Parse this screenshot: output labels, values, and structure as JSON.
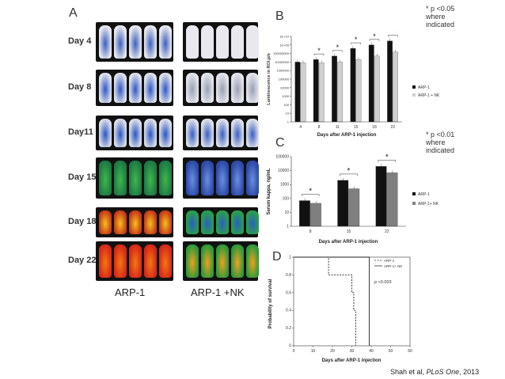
{
  "panel_a": {
    "letter": "A",
    "days": [
      "Day 4",
      "Day 8",
      "Day11",
      "Day 15",
      "Day 18",
      "Day 22"
    ],
    "group_left": "ARP-1",
    "group_right": "ARP-1 +NK"
  },
  "panel_b": {
    "letter": "B",
    "note": "* p <0.05\nwhere\nindicated",
    "legend": [
      "ARP-1",
      "ARP-1 + NK"
    ],
    "chart_data": {
      "type": "bar",
      "title": "",
      "xlabel": "Days after ARP-1 injection",
      "ylabel": "Luminescence in ROI,p/s",
      "yscale": "log",
      "ylim": [
        1,
        10000000000
      ],
      "yticks": [
        "1",
        "10",
        "100",
        "1000",
        "10000",
        "100000",
        "1000000",
        "10000000",
        "100000000",
        "1E+09",
        "1E+10"
      ],
      "categories": [
        "4",
        "8",
        "11",
        "15",
        "18",
        "22"
      ],
      "series": [
        {
          "name": "ARP-1",
          "color": "#111111",
          "values": [
            10000000,
            20000000,
            50000000,
            400000000,
            1000000000,
            3000000000
          ]
        },
        {
          "name": "ARP-1 + NK",
          "color": "#cfcfcf",
          "values": [
            8000000,
            8000000,
            10000000,
            20000000,
            50000000,
            150000000
          ]
        }
      ],
      "significant": [
        "8",
        "11",
        "15",
        "18",
        "22"
      ]
    }
  },
  "panel_c": {
    "letter": "C",
    "note": "* p <0.01\nwhere\nindicated",
    "legend": [
      "ARP-1",
      "ARP-1+ NK"
    ],
    "chart_data": {
      "type": "bar",
      "title": "",
      "xlabel": "Days after ARP-1 injection",
      "ylabel": "Serum kappa, ng/mL",
      "yscale": "log",
      "ylim": [
        1,
        100000
      ],
      "yticks": [
        "1",
        "10",
        "100",
        "1000",
        "10000",
        "100000"
      ],
      "categories": [
        "8",
        "15",
        "22"
      ],
      "series": [
        {
          "name": "ARP-1",
          "color": "#111111",
          "values": [
            70,
            2000,
            20000
          ]
        },
        {
          "name": "ARP-1+ NK",
          "color": "#7f7f7f",
          "values": [
            45,
            500,
            7000
          ]
        }
      ],
      "significant": [
        "8",
        "15",
        "22"
      ]
    }
  },
  "panel_d": {
    "letter": "D",
    "pvalue": "p <0.003",
    "legend": [
      "ARP-1",
      "ARP-1+ NK"
    ],
    "chart_data": {
      "type": "line",
      "title": "",
      "xlabel": "Days after ARP-1 injection",
      "ylabel": "Probability of survival",
      "xlim": [
        0,
        60
      ],
      "ylim": [
        0,
        1
      ],
      "xticks": [
        "0",
        "10",
        "20",
        "30",
        "40",
        "50",
        "60"
      ],
      "yticks": [
        "0",
        "0.2",
        "0.4",
        "0.6",
        "0.8",
        "1"
      ],
      "series": [
        {
          "name": "ARP-1",
          "style": "dashed",
          "x": [
            0,
            18,
            18,
            30,
            30,
            31,
            31,
            32,
            32
          ],
          "y": [
            1,
            1,
            0.8,
            0.8,
            0.6,
            0.6,
            0.4,
            0.4,
            0
          ]
        },
        {
          "name": "ARP-1+ NK",
          "style": "solid",
          "x": [
            0,
            39,
            39
          ],
          "y": [
            1,
            1,
            0
          ]
        }
      ]
    }
  },
  "citation": {
    "authors": "Shah et al, ",
    "journal": "PLoS One",
    "year": ", 2013"
  }
}
